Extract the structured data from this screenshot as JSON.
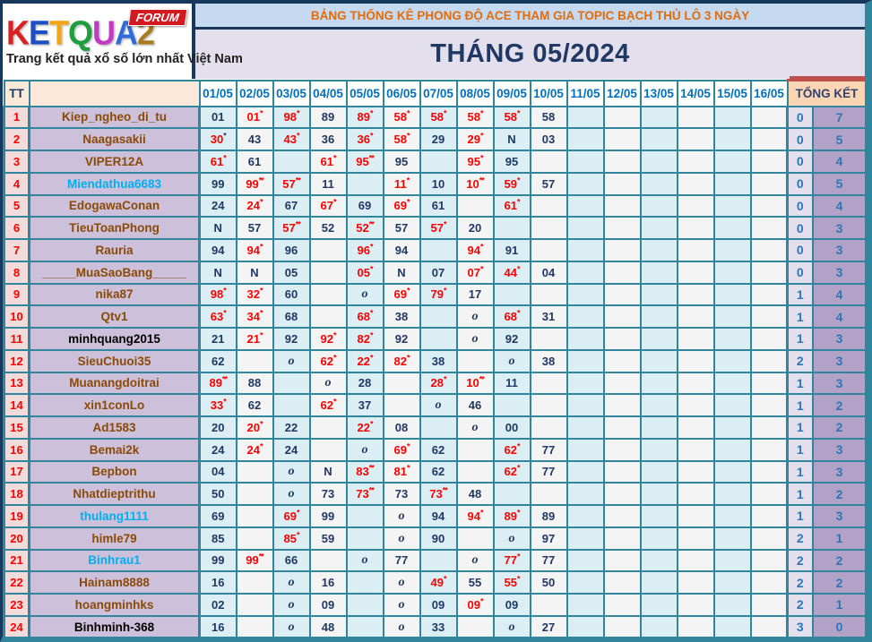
{
  "logo": {
    "letters": [
      {
        "ch": "K",
        "color": "#D92121"
      },
      {
        "ch": "E",
        "color": "#1E4FC2"
      },
      {
        "ch": "T",
        "color": "#F2A515"
      },
      {
        "ch": "Q",
        "color": "#1E9E3C"
      },
      {
        "ch": "U",
        "color": "#C03BC4"
      },
      {
        "ch": "A",
        "color": "#2E6DD9"
      },
      {
        "ch": "2",
        "color": "#A97B1F"
      }
    ],
    "forum_label": "FORUM",
    "tagline": "Trang kết quả xổ số lớn nhất Việt Nam"
  },
  "header": {
    "title": "BẢNG THỐNG KÊ PHONG ĐỘ ACE THAM GIA TOPIC BẠCH THỦ LÔ 3 NGÀY",
    "subtitle": "THÁNG 05/2024"
  },
  "columns": {
    "tt": "TT",
    "name": "",
    "dates": [
      "01/05",
      "02/05",
      "03/05",
      "04/05",
      "05/05",
      "06/05",
      "07/05",
      "08/05",
      "09/05",
      "10/05",
      "11/05",
      "12/05",
      "13/05",
      "14/05",
      "15/05",
      "16/05"
    ],
    "total": "TỔNG KẾT"
  },
  "legend": {
    "cell_types": {
      "0": "plain navy number",
      "1": "red number with red star(s)",
      "2": "italic o mark",
      "3": "red number with navy star"
    }
  },
  "rows": [
    {
      "tt": "1",
      "name": "Kiep_ngheo_di_tu",
      "nc": "brown",
      "cells": [
        [
          "01",
          0
        ],
        [
          "01*",
          1
        ],
        [
          "98*",
          1
        ],
        [
          "89",
          0
        ],
        [
          "89*",
          1
        ],
        [
          "58*",
          1
        ],
        [
          "58*",
          1
        ],
        [
          "58*",
          1
        ],
        [
          "58*",
          1
        ],
        [
          "58",
          0
        ]
      ],
      "tk": [
        "0",
        "7"
      ]
    },
    {
      "tt": "2",
      "name": "Naagasakii",
      "nc": "brown",
      "cells": [
        [
          "30*",
          3
        ],
        [
          "43",
          0
        ],
        [
          "43*",
          1
        ],
        [
          "36",
          0
        ],
        [
          "36*",
          1
        ],
        [
          "58*",
          1
        ],
        [
          "29",
          0
        ],
        [
          "29*",
          1
        ],
        [
          "N",
          0
        ],
        [
          "03",
          0
        ]
      ],
      "tk": [
        "0",
        "5"
      ]
    },
    {
      "tt": "3",
      "name": "VIPER12A",
      "nc": "brown",
      "cells": [
        [
          "61*",
          1
        ],
        [
          "61",
          0
        ],
        [
          "",
          0
        ],
        [
          "61*",
          1
        ],
        [
          "95**",
          1
        ],
        [
          "95",
          0
        ],
        [
          "",
          0
        ],
        [
          "95*",
          1
        ],
        [
          "95",
          0
        ],
        [
          "",
          0
        ]
      ],
      "tk": [
        "0",
        "4"
      ]
    },
    {
      "tt": "4",
      "name": "Miendathua6683",
      "nc": "cyan",
      "cells": [
        [
          "99",
          0
        ],
        [
          "99**",
          1
        ],
        [
          "57**",
          1
        ],
        [
          "11",
          0
        ],
        [
          "",
          0
        ],
        [
          "11*",
          1
        ],
        [
          "10",
          0
        ],
        [
          "10**",
          1
        ],
        [
          "59*",
          1
        ],
        [
          "57",
          0
        ]
      ],
      "tk": [
        "0",
        "5"
      ]
    },
    {
      "tt": "5",
      "name": "EdogawaConan",
      "nc": "brown",
      "cells": [
        [
          "24",
          0
        ],
        [
          "24*",
          1
        ],
        [
          "67",
          0
        ],
        [
          "67*",
          1
        ],
        [
          "69",
          0
        ],
        [
          "69*",
          1
        ],
        [
          "61",
          0
        ],
        [
          "",
          0
        ],
        [
          "61*",
          1
        ],
        [
          "",
          0
        ]
      ],
      "tk": [
        "0",
        "4"
      ]
    },
    {
      "tt": "6",
      "name": "TieuToanPhong",
      "nc": "brown",
      "cells": [
        [
          "N",
          0
        ],
        [
          "57",
          0
        ],
        [
          "57**",
          1
        ],
        [
          "52",
          0
        ],
        [
          "52**",
          1
        ],
        [
          "57",
          0
        ],
        [
          "57*",
          1
        ],
        [
          "20",
          0
        ],
        [
          "",
          0
        ],
        [
          "",
          0
        ]
      ],
      "tk": [
        "0",
        "3"
      ]
    },
    {
      "tt": "7",
      "name": "Rauria",
      "nc": "brown",
      "cells": [
        [
          "94",
          0
        ],
        [
          "94*",
          1
        ],
        [
          "96",
          0
        ],
        [
          "",
          0
        ],
        [
          "96*",
          1
        ],
        [
          "94",
          0
        ],
        [
          "",
          0
        ],
        [
          "94*",
          1
        ],
        [
          "91",
          0
        ],
        [
          "",
          0
        ]
      ],
      "tk": [
        "0",
        "3"
      ]
    },
    {
      "tt": "8",
      "name": "_____MuaSaoBang_____",
      "nc": "brown",
      "cells": [
        [
          "N",
          0
        ],
        [
          "N",
          0
        ],
        [
          "05",
          0
        ],
        [
          "",
          0
        ],
        [
          "05*",
          1
        ],
        [
          "N",
          0
        ],
        [
          "07",
          0
        ],
        [
          "07*",
          1
        ],
        [
          "44*",
          1
        ],
        [
          "04",
          0
        ]
      ],
      "tk": [
        "0",
        "3"
      ]
    },
    {
      "tt": "9",
      "name": "nika87",
      "nc": "brown",
      "cells": [
        [
          "98*",
          1
        ],
        [
          "32*",
          1
        ],
        [
          "60",
          0
        ],
        [
          "",
          0
        ],
        [
          "o",
          2
        ],
        [
          "69*",
          1
        ],
        [
          "79*",
          1
        ],
        [
          "17",
          0
        ],
        [
          "",
          0
        ],
        [
          "",
          0
        ]
      ],
      "tk": [
        "1",
        "4"
      ]
    },
    {
      "tt": "10",
      "name": "Qtv1",
      "nc": "brown",
      "cells": [
        [
          "63*",
          1
        ],
        [
          "34*",
          1
        ],
        [
          "68",
          0
        ],
        [
          "",
          0
        ],
        [
          "68*",
          1
        ],
        [
          "38",
          0
        ],
        [
          "",
          0
        ],
        [
          "o",
          2
        ],
        [
          "68*",
          1
        ],
        [
          "31",
          0
        ]
      ],
      "tk": [
        "1",
        "4"
      ]
    },
    {
      "tt": "11",
      "name": "minhquang2015",
      "nc": "black",
      "cells": [
        [
          "21",
          0
        ],
        [
          "21*",
          1
        ],
        [
          "92",
          0
        ],
        [
          "92*",
          1
        ],
        [
          "82*",
          1
        ],
        [
          "92",
          0
        ],
        [
          "",
          0
        ],
        [
          "o",
          2
        ],
        [
          "92",
          0
        ],
        [
          "",
          0
        ]
      ],
      "tk": [
        "1",
        "3"
      ]
    },
    {
      "tt": "12",
      "name": "SieuChuoi35",
      "nc": "brown",
      "cells": [
        [
          "62",
          0
        ],
        [
          "",
          0
        ],
        [
          "o",
          2
        ],
        [
          "62*",
          1
        ],
        [
          "22*",
          1
        ],
        [
          "82*",
          1
        ],
        [
          "38",
          0
        ],
        [
          "",
          0
        ],
        [
          "o",
          2
        ],
        [
          "38",
          0
        ]
      ],
      "tk": [
        "2",
        "3"
      ]
    },
    {
      "tt": "13",
      "name": "Muanangdoitrai",
      "nc": "brown",
      "cells": [
        [
          "89**",
          1
        ],
        [
          "88",
          0
        ],
        [
          "",
          0
        ],
        [
          "o",
          2
        ],
        [
          "28",
          0
        ],
        [
          "",
          0
        ],
        [
          "28*",
          1
        ],
        [
          "10**",
          1
        ],
        [
          "11",
          0
        ],
        [
          "",
          0
        ]
      ],
      "tk": [
        "1",
        "3"
      ]
    },
    {
      "tt": "14",
      "name": "xin1conLo",
      "nc": "brown",
      "cells": [
        [
          "33*",
          1
        ],
        [
          "62",
          0
        ],
        [
          "",
          0
        ],
        [
          "62*",
          1
        ],
        [
          "37",
          0
        ],
        [
          "",
          0
        ],
        [
          "o",
          2
        ],
        [
          "46",
          0
        ],
        [
          "",
          0
        ],
        [
          "",
          0
        ]
      ],
      "tk": [
        "1",
        "2"
      ]
    },
    {
      "tt": "15",
      "name": "Ad1583",
      "nc": "brown",
      "cells": [
        [
          "20",
          0
        ],
        [
          "20*",
          1
        ],
        [
          "22",
          0
        ],
        [
          "",
          0
        ],
        [
          "22*",
          1
        ],
        [
          "08",
          0
        ],
        [
          "",
          0
        ],
        [
          "o",
          2
        ],
        [
          "00",
          0
        ],
        [
          "",
          0
        ]
      ],
      "tk": [
        "1",
        "2"
      ]
    },
    {
      "tt": "16",
      "name": "Bemai2k",
      "nc": "brown",
      "cells": [
        [
          "24",
          0
        ],
        [
          "24*",
          1
        ],
        [
          "24",
          0
        ],
        [
          "",
          0
        ],
        [
          "o",
          2
        ],
        [
          "69*",
          1
        ],
        [
          "62",
          0
        ],
        [
          "",
          0
        ],
        [
          "62*",
          1
        ],
        [
          "77",
          0
        ]
      ],
      "tk": [
        "1",
        "3"
      ]
    },
    {
      "tt": "17",
      "name": "Bepbon",
      "nc": "brown",
      "cells": [
        [
          "04",
          0
        ],
        [
          "",
          0
        ],
        [
          "o",
          2
        ],
        [
          "N",
          0
        ],
        [
          "83**",
          1
        ],
        [
          "81*",
          1
        ],
        [
          "62",
          0
        ],
        [
          "",
          0
        ],
        [
          "62*",
          1
        ],
        [
          "77",
          0
        ]
      ],
      "tk": [
        "1",
        "3"
      ]
    },
    {
      "tt": "18",
      "name": "Nhatdieptrithu",
      "nc": "brown",
      "cells": [
        [
          "50",
          0
        ],
        [
          "",
          0
        ],
        [
          "o",
          2
        ],
        [
          "73",
          0
        ],
        [
          "73**",
          1
        ],
        [
          "73",
          0
        ],
        [
          "73**",
          1
        ],
        [
          "48",
          0
        ],
        [
          "",
          0
        ],
        [
          "",
          0
        ]
      ],
      "tk": [
        "1",
        "2"
      ]
    },
    {
      "tt": "19",
      "name": "thulang1111",
      "nc": "cyan",
      "cells": [
        [
          "69",
          0
        ],
        [
          "",
          0
        ],
        [
          "69*",
          1
        ],
        [
          "99",
          0
        ],
        [
          "",
          0
        ],
        [
          "o",
          2
        ],
        [
          "94",
          0
        ],
        [
          "94*",
          1
        ],
        [
          "89*",
          1
        ],
        [
          "89",
          0
        ]
      ],
      "tk": [
        "1",
        "3"
      ]
    },
    {
      "tt": "20",
      "name": "himle79",
      "nc": "brown",
      "cells": [
        [
          "85",
          0
        ],
        [
          "",
          0
        ],
        [
          "85*",
          1
        ],
        [
          "59",
          0
        ],
        [
          "",
          0
        ],
        [
          "o",
          2
        ],
        [
          "90",
          0
        ],
        [
          "",
          0
        ],
        [
          "o",
          2
        ],
        [
          "97",
          0
        ]
      ],
      "tk": [
        "2",
        "1"
      ]
    },
    {
      "tt": "21",
      "name": "Binhrau1",
      "nc": "cyan",
      "cells": [
        [
          "99",
          0
        ],
        [
          "99**",
          1
        ],
        [
          "66",
          0
        ],
        [
          "",
          0
        ],
        [
          "o",
          2
        ],
        [
          "77",
          0
        ],
        [
          "",
          0
        ],
        [
          "o",
          2
        ],
        [
          "77*",
          1
        ],
        [
          "77",
          0
        ]
      ],
      "tk": [
        "2",
        "2"
      ]
    },
    {
      "tt": "22",
      "name": "Hainam8888",
      "nc": "brown",
      "cells": [
        [
          "16",
          0
        ],
        [
          "",
          0
        ],
        [
          "o",
          2
        ],
        [
          "16",
          0
        ],
        [
          "",
          0
        ],
        [
          "o",
          2
        ],
        [
          "49*",
          1
        ],
        [
          "55",
          0
        ],
        [
          "55*",
          1
        ],
        [
          "50",
          0
        ]
      ],
      "tk": [
        "2",
        "2"
      ]
    },
    {
      "tt": "23",
      "name": "hoangminhks",
      "nc": "brown",
      "cells": [
        [
          "02",
          0
        ],
        [
          "",
          0
        ],
        [
          "o",
          2
        ],
        [
          "09",
          0
        ],
        [
          "",
          0
        ],
        [
          "o",
          2
        ],
        [
          "09",
          0
        ],
        [
          "09*",
          1
        ],
        [
          "09",
          0
        ],
        [
          "",
          0
        ]
      ],
      "tk": [
        "2",
        "1"
      ]
    },
    {
      "tt": "24",
      "name": "Binhminh-368",
      "nc": "black",
      "cells": [
        [
          "16",
          0
        ],
        [
          "",
          0
        ],
        [
          "o",
          2
        ],
        [
          "48",
          0
        ],
        [
          "",
          0
        ],
        [
          "o",
          2
        ],
        [
          "33",
          0
        ],
        [
          "",
          0
        ],
        [
          "o",
          2
        ],
        [
          "27",
          0
        ]
      ],
      "tk": [
        "3",
        "0"
      ]
    }
  ],
  "colors": {
    "outer_border_navy": "#17375D",
    "grid_teal": "#31859C",
    "title_bg": "#C5D9F1",
    "title_text_orange": "#E36C0A",
    "subtitle_bg": "#E4DFEC",
    "subtitle_text": "#1F3864",
    "header_peach": "#FDE9D9",
    "date_header_blue": "#0070C0",
    "col_cyan": "#DAEEF3",
    "col_white": "#F5F4F4",
    "tt_col_bg": "#F2DCDB",
    "name_col_bg": "#CCC0DA",
    "tk1_bg": "#E4DFEC",
    "tk2_bg": "#B3A2C7",
    "tk_text": "#2E75B6",
    "red_value": "#FF0000",
    "navy_value": "#1F3864",
    "red_accent": "#C0504D",
    "forum_badge_red": "#D31920"
  }
}
